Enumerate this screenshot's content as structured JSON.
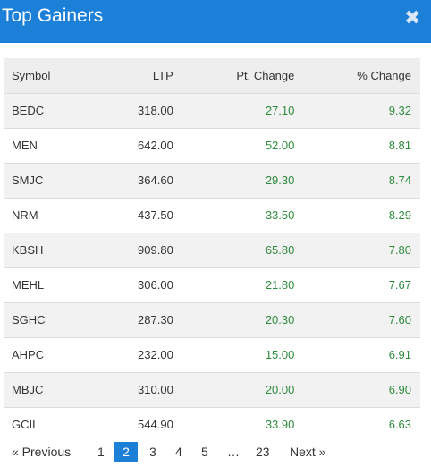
{
  "modal": {
    "title": "Top Gainers",
    "close_icon": "close-icon"
  },
  "table": {
    "headers": {
      "symbol": "Symbol",
      "ltp": "LTP",
      "pt_change": "Pt. Change",
      "pct_change": "% Change"
    },
    "rows": [
      {
        "symbol": "BEDC",
        "ltp": "318.00",
        "pt_change": "27.10",
        "pct_change": "9.32"
      },
      {
        "symbol": "MEN",
        "ltp": "642.00",
        "pt_change": "52.00",
        "pct_change": "8.81"
      },
      {
        "symbol": "SMJC",
        "ltp": "364.60",
        "pt_change": "29.30",
        "pct_change": "8.74"
      },
      {
        "symbol": "NRM",
        "ltp": "437.50",
        "pt_change": "33.50",
        "pct_change": "8.29"
      },
      {
        "symbol": "KBSH",
        "ltp": "909.80",
        "pt_change": "65.80",
        "pct_change": "7.80"
      },
      {
        "symbol": "MEHL",
        "ltp": "306.00",
        "pt_change": "21.80",
        "pct_change": "7.67"
      },
      {
        "symbol": "SGHC",
        "ltp": "287.30",
        "pt_change": "20.30",
        "pct_change": "7.60"
      },
      {
        "symbol": "AHPC",
        "ltp": "232.00",
        "pt_change": "15.00",
        "pct_change": "6.91"
      },
      {
        "symbol": "MBJC",
        "ltp": "310.00",
        "pt_change": "20.00",
        "pct_change": "6.90"
      },
      {
        "symbol": "GCIL",
        "ltp": "544.90",
        "pt_change": "33.90",
        "pct_change": "6.63"
      }
    ]
  },
  "pagination": {
    "previous": "« Previous",
    "pages": [
      "1",
      "2",
      "3",
      "4",
      "5",
      "…",
      "23"
    ],
    "current": "2",
    "next": "Next »"
  },
  "colors": {
    "header_bg": "#1d80d8",
    "positive": "#2e8b3e",
    "active_page": "#1d80d8"
  }
}
